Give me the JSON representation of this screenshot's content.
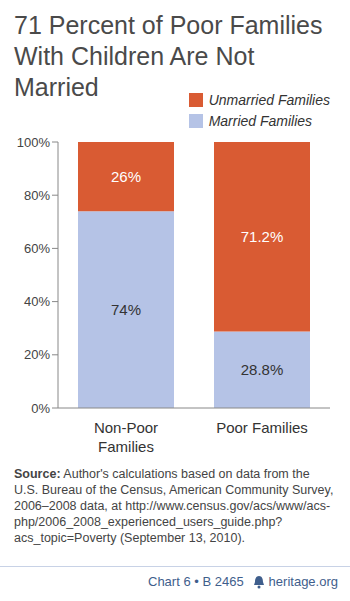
{
  "chart_data": {
    "type": "bar",
    "title": "71 Percent of Poor Families With Children Are Not Married",
    "categories": [
      "Non-Poor Families",
      "Poor Families"
    ],
    "series": [
      {
        "name": "Married Families",
        "color": "#b5c3e6",
        "values": [
          74,
          28.8
        ],
        "value_labels": [
          "74%",
          "28.8%"
        ]
      },
      {
        "name": "Unmarried Families",
        "color": "#d95b33",
        "values": [
          26,
          71.2
        ],
        "value_labels": [
          "26%",
          "71.2%"
        ]
      }
    ],
    "stacked": true,
    "data_labels": true,
    "legend": "upper right",
    "grid": false,
    "ylim": [
      0,
      100
    ],
    "yticks": [
      {
        "value": 0,
        "label": "0%"
      },
      {
        "value": 20,
        "label": "20%"
      },
      {
        "value": 40,
        "label": "40%"
      },
      {
        "value": 60,
        "label": "60%"
      },
      {
        "value": 80,
        "label": "80%"
      },
      {
        "value": 100,
        "label": "100%"
      }
    ],
    "source_label": "Source:",
    "source": "Author's calculations based on data from the U.S. Bureau of the Census, American Community Survey, 2006–2008 data, at http://www.census.gov/acs/www/acs-php/2006_2008_experienced_users_guide.php?acs_topic=Poverty (September 13, 2010).",
    "footer": "Chart 6 • B 2465",
    "site": "heritage.org"
  }
}
